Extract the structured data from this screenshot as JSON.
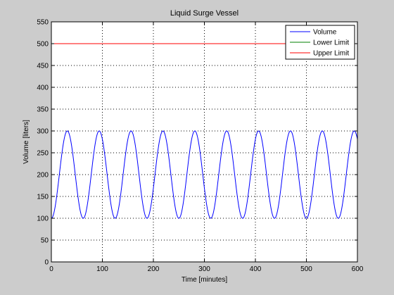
{
  "chart_data": {
    "type": "line",
    "title": "Liquid Surge Vessel",
    "xlabel": "Time [minutes]",
    "ylabel": "Volume [liters]",
    "xlim": [
      0,
      600
    ],
    "ylim": [
      0,
      550
    ],
    "xticks": [
      0,
      100,
      200,
      300,
      400,
      500,
      600
    ],
    "yticks": [
      0,
      50,
      100,
      150,
      200,
      250,
      300,
      350,
      400,
      450,
      500,
      550
    ],
    "grid": true,
    "legend_position": "top-right",
    "series": [
      {
        "name": "Volume",
        "color": "#0000ff",
        "function": "sine",
        "mean": 200,
        "amplitude": 100,
        "period": 62.5,
        "min_at_t0": true,
        "x_range": [
          0,
          600
        ]
      },
      {
        "name": "Lower Limit",
        "color": "#008000",
        "x": [
          0,
          600
        ],
        "y": [
          500,
          500
        ]
      },
      {
        "name": "Upper Limit",
        "color": "#ff0000",
        "x": [
          0,
          600
        ],
        "y": [
          500,
          500
        ]
      }
    ]
  }
}
